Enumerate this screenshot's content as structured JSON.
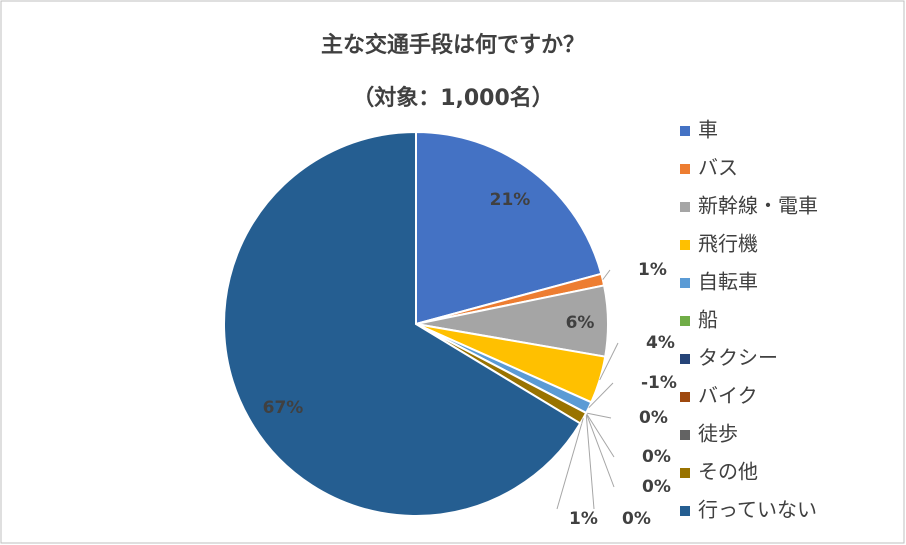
{
  "chart_data": {
    "type": "pie",
    "title": "主な交通手段は何ですか？",
    "subtitle": "（対象：1,000名）",
    "categories": [
      "車",
      "バス",
      "新幹線・電車",
      "飛行機",
      "自転車",
      "船",
      "タクシー",
      "バイク",
      "徒歩",
      "その他",
      "行っていない"
    ],
    "values": [
      21,
      1,
      6,
      4,
      -1,
      0,
      0,
      0,
      0,
      1,
      67
    ],
    "value_labels": [
      "21%",
      "1%",
      "6%",
      "4%",
      "-1%",
      "0%",
      "0%",
      "0%",
      "0%",
      "1%",
      "67%"
    ],
    "colors": [
      "#4472c4",
      "#ed7d31",
      "#a5a5a5",
      "#ffc000",
      "#5b9bd5",
      "#70ad47",
      "#264478",
      "#9e480e",
      "#636363",
      "#997300",
      "#255e91"
    ],
    "legend": "right"
  }
}
